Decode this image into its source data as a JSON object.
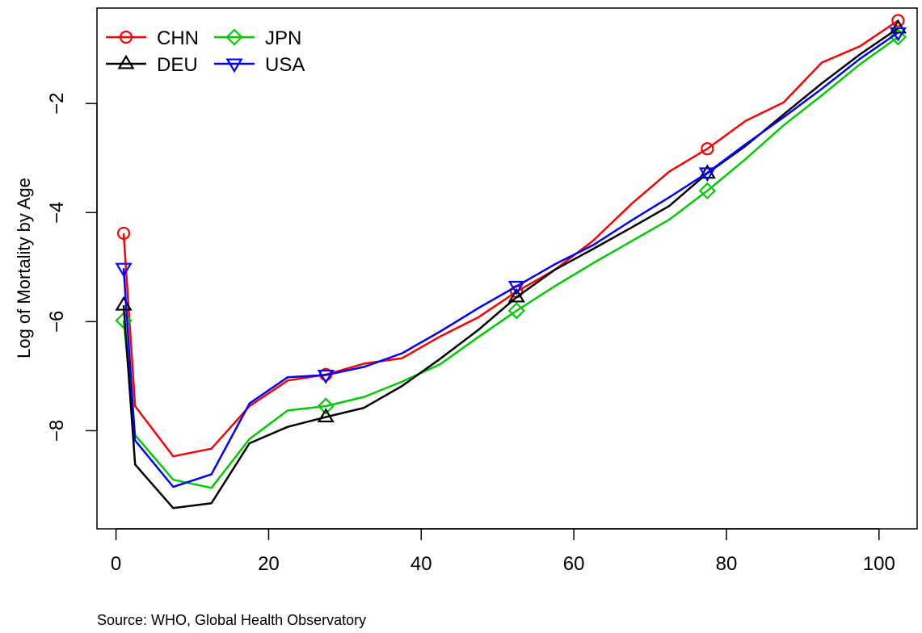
{
  "chart_data": {
    "type": "line",
    "title": "",
    "xlabel": "",
    "ylabel": "Log of Mortality by Age",
    "source": "Source: WHO, Global Health Observatory",
    "xlim": [
      -2.5,
      105
    ],
    "ylim": [
      -9.8,
      -0.25
    ],
    "xticks": [
      0,
      20,
      40,
      60,
      80,
      100
    ],
    "yticks": [
      -2,
      -4,
      -6,
      -8
    ],
    "grid": false,
    "legend": "top-left",
    "marker_x": [
      1,
      27.5,
      52.5,
      77.5,
      102.5
    ],
    "x": [
      1,
      2.5,
      7.5,
      12.5,
      17.5,
      22.5,
      27.5,
      32.5,
      37.5,
      42.5,
      47.5,
      52.5,
      57.5,
      62.5,
      67.5,
      72.5,
      77.5,
      82.5,
      87.5,
      92.5,
      97.5,
      102.5
    ],
    "series": [
      {
        "name": "CHN",
        "color": "#ff0000",
        "marker": "circle",
        "values": [
          -4.38,
          -7.55,
          -8.47,
          -8.33,
          -7.55,
          -7.08,
          -6.97,
          -6.77,
          -6.67,
          -6.27,
          -5.92,
          -5.45,
          -5.05,
          -4.52,
          -3.85,
          -3.25,
          -2.83,
          -2.32,
          -1.98,
          -1.25,
          -0.95,
          -0.48
        ]
      },
      {
        "name": "JPN",
        "color": "#00cc00",
        "marker": "diamond",
        "values": [
          -5.98,
          -8.08,
          -8.9,
          -9.05,
          -8.15,
          -7.63,
          -7.55,
          -7.38,
          -7.1,
          -6.78,
          -6.28,
          -5.8,
          -5.35,
          -4.93,
          -4.53,
          -4.13,
          -3.6,
          -3.02,
          -2.4,
          -1.85,
          -1.28,
          -0.78
        ]
      },
      {
        "name": "DEU",
        "color": "#000000",
        "marker": "triangle-up",
        "values": [
          -5.7,
          -8.62,
          -9.42,
          -9.33,
          -8.23,
          -7.93,
          -7.75,
          -7.58,
          -7.18,
          -6.68,
          -6.15,
          -5.55,
          -5.05,
          -4.67,
          -4.28,
          -3.88,
          -3.28,
          -2.78,
          -2.2,
          -1.63,
          -1.1,
          -0.62
        ]
      },
      {
        "name": "USA",
        "color": "#0000ff",
        "marker": "triangle-down",
        "values": [
          -5.02,
          -8.18,
          -9.03,
          -8.8,
          -7.5,
          -7.02,
          -6.98,
          -6.83,
          -6.58,
          -6.18,
          -5.75,
          -5.35,
          -4.95,
          -4.6,
          -4.15,
          -3.72,
          -3.27,
          -2.75,
          -2.25,
          -1.73,
          -1.18,
          -0.7
        ]
      }
    ]
  }
}
